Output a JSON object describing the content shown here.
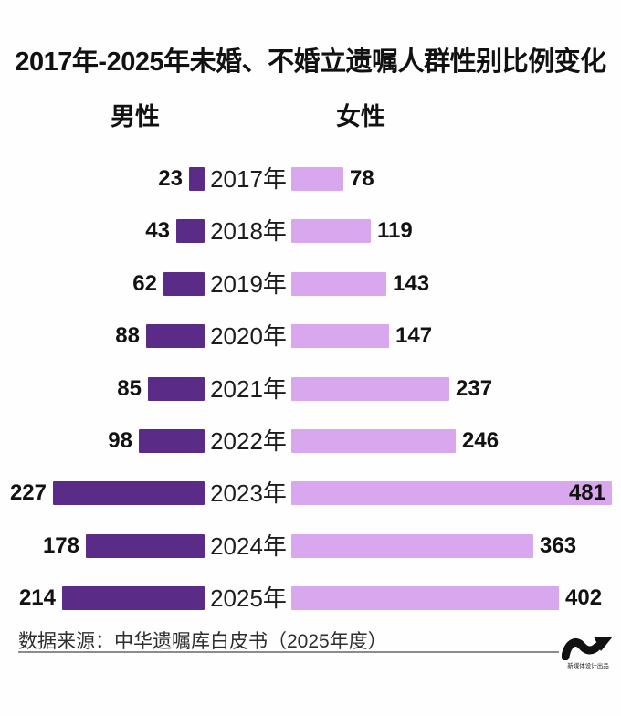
{
  "title": "2017年-2025年未婚、不婚立遗嘱人群性别比例变化",
  "legend": {
    "male": "男性",
    "female": "女性"
  },
  "source": "数据来源：中华遗嘱库白皮书（2025年度）",
  "logo": {
    "caption": "新媒体设计出品"
  },
  "colors": {
    "male_bar": "#5b2c87",
    "female_bar": "#d9a7ee",
    "text": "#111111",
    "source_text": "#2e2e2e",
    "divider": "#8c8c8c",
    "logo": "#111111"
  },
  "chart_data": {
    "type": "bar",
    "orientation": "horizontal-diverging",
    "title": "2017年-2025年未婚、不婚立遗嘱人群性别比例变化",
    "categories": [
      "2017年",
      "2018年",
      "2019年",
      "2020年",
      "2021年",
      "2022年",
      "2023年",
      "2024年",
      "2025年"
    ],
    "series": [
      {
        "name": "男性",
        "side": "left",
        "color": "#5b2c87",
        "values": [
          23,
          43,
          62,
          88,
          85,
          98,
          227,
          178,
          214
        ]
      },
      {
        "name": "女性",
        "side": "right",
        "color": "#d9a7ee",
        "values": [
          78,
          119,
          143,
          147,
          237,
          246,
          481,
          363,
          402
        ]
      }
    ],
    "value_labels": true,
    "legend_position": "top",
    "xlim_left": [
      0,
      240
    ],
    "xlim_right": [
      0,
      500
    ]
  }
}
